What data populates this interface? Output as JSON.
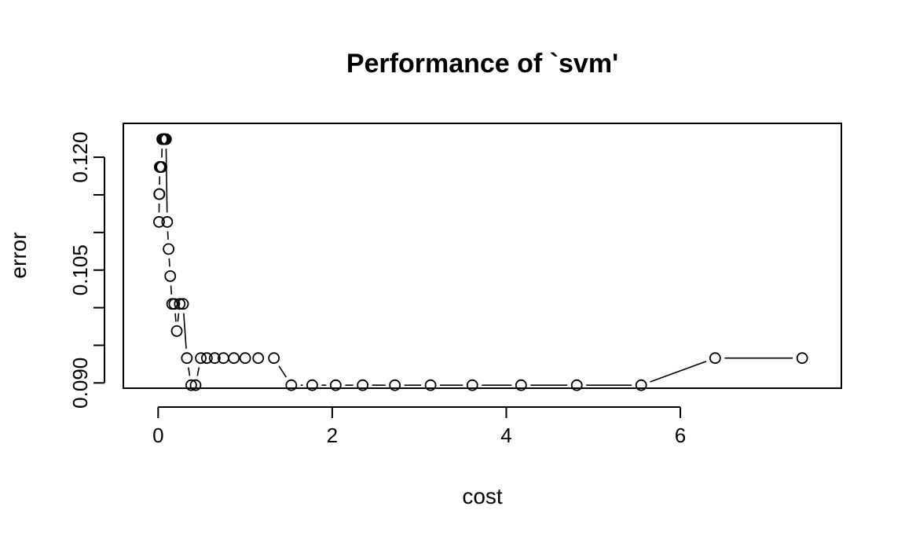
{
  "chart_data": {
    "type": "scatter",
    "title": "Performance of `svm'",
    "xlabel": "cost",
    "ylabel": "error",
    "xlim": [
      -0.4,
      7.85
    ],
    "ylim": [
      0.0893,
      0.1245
    ],
    "x_ticks": [
      0,
      2,
      4,
      6
    ],
    "x_tick_labels": [
      "0",
      "2",
      "4",
      "6"
    ],
    "y_ticks": [
      0.09,
      0.095,
      0.1,
      0.105,
      0.11,
      0.115,
      0.12
    ],
    "y_tick_labels": [
      "0.090",
      "",
      "",
      "0.105",
      "",
      "",
      "0.120"
    ],
    "grid": false,
    "legend": "none",
    "point_style": "open-circle",
    "line_style": "b",
    "series": [
      {
        "x": [
          0.01,
          0.012,
          0.015,
          0.018,
          0.022,
          0.027,
          0.033,
          0.039,
          0.047,
          0.056,
          0.066,
          0.077,
          0.09,
          0.104,
          0.12,
          0.139,
          0.161,
          0.186,
          0.214,
          0.248,
          0.286,
          0.33,
          0.38,
          0.43,
          0.49,
          0.56,
          0.65,
          0.75,
          0.87,
          1.0,
          1.15,
          1.33,
          1.53,
          1.77,
          2.04,
          2.35,
          2.72,
          3.13,
          3.61,
          4.17,
          4.81,
          5.55,
          6.4,
          7.4
        ],
        "y": [
          0.1114,
          0.1151,
          0.1151,
          0.1187,
          0.1187,
          0.1187,
          0.1187,
          0.1187,
          0.1224,
          0.1224,
          0.1224,
          0.1224,
          0.1224,
          0.1114,
          0.1078,
          0.1042,
          0.1005,
          0.1005,
          0.0969,
          0.1005,
          0.1005,
          0.0933,
          0.0897,
          0.0897,
          0.0933,
          0.0933,
          0.0933,
          0.0933,
          0.0933,
          0.0933,
          0.0933,
          0.0933,
          0.0897,
          0.0897,
          0.0897,
          0.0897,
          0.0897,
          0.0897,
          0.0897,
          0.0897,
          0.0897,
          0.0897,
          0.0933,
          0.0933
        ]
      }
    ]
  }
}
